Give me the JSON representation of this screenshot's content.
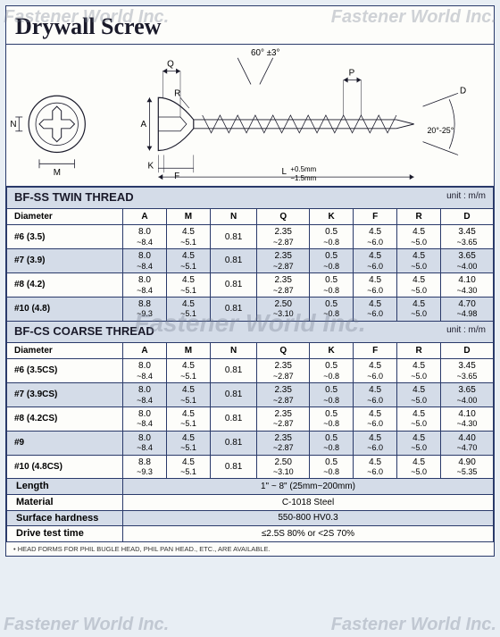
{
  "watermark": "Fastener World Inc.",
  "title": "Drywall Screw",
  "diagram": {
    "angle1": "60° ±3°",
    "angle2": "20°-25°",
    "tol": "+0.5mm\n−1.5mm",
    "labels": {
      "N": "N",
      "M": "M",
      "Q": "Q",
      "R": "R",
      "A": "A",
      "K": "K",
      "F": "F",
      "L": "L",
      "P": "P",
      "D": "D"
    }
  },
  "unit_text": "unit : m/m",
  "sections": [
    {
      "title": "BF-SS TWIN THREAD",
      "cols": [
        "Diameter",
        "A",
        "M",
        "N",
        "Q",
        "K",
        "F",
        "R",
        "D"
      ],
      "rows": [
        {
          "alt": false,
          "d": "#6 (3.5)",
          "A": [
            "8.0",
            "~8.4"
          ],
          "M": [
            "4.5",
            "~5.1"
          ],
          "N": "0.81",
          "Q": [
            "2.35",
            "~2.87"
          ],
          "K": [
            "0.5",
            "~0.8"
          ],
          "F": [
            "4.5",
            "~6.0"
          ],
          "R": [
            "4.5",
            "~5.0"
          ],
          "D": [
            "3.45",
            "~3.65"
          ]
        },
        {
          "alt": true,
          "d": "#7 (3.9)",
          "A": [
            "8.0",
            "~8.4"
          ],
          "M": [
            "4.5",
            "~5.1"
          ],
          "N": "0.81",
          "Q": [
            "2.35",
            "~2.87"
          ],
          "K": [
            "0.5",
            "~0.8"
          ],
          "F": [
            "4.5",
            "~6.0"
          ],
          "R": [
            "4.5",
            "~5.0"
          ],
          "D": [
            "3.65",
            "~4.00"
          ]
        },
        {
          "alt": false,
          "d": "#8 (4.2)",
          "A": [
            "8.0",
            "~8.4"
          ],
          "M": [
            "4.5",
            "~5.1"
          ],
          "N": "0.81",
          "Q": [
            "2.35",
            "~2.87"
          ],
          "K": [
            "0.5",
            "~0.8"
          ],
          "F": [
            "4.5",
            "~6.0"
          ],
          "R": [
            "4.5",
            "~5.0"
          ],
          "D": [
            "4.10",
            "~4.30"
          ]
        },
        {
          "alt": true,
          "d": "#10 (4.8)",
          "A": [
            "8.8",
            "~9.3"
          ],
          "M": [
            "4.5",
            "~5.1"
          ],
          "N": "0.81",
          "Q": [
            "2.50",
            "~3.10"
          ],
          "K": [
            "0.5",
            "~0.8"
          ],
          "F": [
            "4.5",
            "~6.0"
          ],
          "R": [
            "4.5",
            "~5.0"
          ],
          "D": [
            "4.70",
            "~4.98"
          ]
        }
      ]
    },
    {
      "title": "BF-CS COARSE THREAD",
      "cols": [
        "Diameter",
        "A",
        "M",
        "N",
        "Q",
        "K",
        "F",
        "R",
        "D"
      ],
      "rows": [
        {
          "alt": false,
          "d": "#6 (3.5CS)",
          "A": [
            "8.0",
            "~8.4"
          ],
          "M": [
            "4.5",
            "~5.1"
          ],
          "N": "0.81",
          "Q": [
            "2.35",
            "~2.87"
          ],
          "K": [
            "0.5",
            "~0.8"
          ],
          "F": [
            "4.5",
            "~6.0"
          ],
          "R": [
            "4.5",
            "~5.0"
          ],
          "D": [
            "3.45",
            "~3.65"
          ]
        },
        {
          "alt": true,
          "d": "#7 (3.9CS)",
          "A": [
            "8.0",
            "~8.4"
          ],
          "M": [
            "4.5",
            "~5.1"
          ],
          "N": "0.81",
          "Q": [
            "2.35",
            "~2.87"
          ],
          "K": [
            "0.5",
            "~0.8"
          ],
          "F": [
            "4.5",
            "~6.0"
          ],
          "R": [
            "4.5",
            "~5.0"
          ],
          "D": [
            "3.65",
            "~4.00"
          ]
        },
        {
          "alt": false,
          "d": "#8 (4.2CS)",
          "A": [
            "8.0",
            "~8.4"
          ],
          "M": [
            "4.5",
            "~5.1"
          ],
          "N": "0.81",
          "Q": [
            "2.35",
            "~2.87"
          ],
          "K": [
            "0.5",
            "~0.8"
          ],
          "F": [
            "4.5",
            "~6.0"
          ],
          "R": [
            "4.5",
            "~5.0"
          ],
          "D": [
            "4.10",
            "~4.30"
          ]
        },
        {
          "alt": true,
          "d": "#9",
          "A": [
            "8.0",
            "~8.4"
          ],
          "M": [
            "4.5",
            "~5.1"
          ],
          "N": "0.81",
          "Q": [
            "2.35",
            "~2.87"
          ],
          "K": [
            "0.5",
            "~0.8"
          ],
          "F": [
            "4.5",
            "~6.0"
          ],
          "R": [
            "4.5",
            "~5.0"
          ],
          "D": [
            "4.40",
            "~4.70"
          ]
        },
        {
          "alt": false,
          "d": "#10 (4.8CS)",
          "A": [
            "8.8",
            "~9.3"
          ],
          "M": [
            "4.5",
            "~5.1"
          ],
          "N": "0.81",
          "Q": [
            "2.50",
            "~3.10"
          ],
          "K": [
            "0.5",
            "~0.8"
          ],
          "F": [
            "4.5",
            "~6.0"
          ],
          "R": [
            "4.5",
            "~5.0"
          ],
          "D": [
            "4.90",
            "~5.35"
          ]
        }
      ]
    }
  ],
  "info": [
    {
      "alt": true,
      "label": "Length",
      "value": "1\" ~ 8\" (25mm~200mm)"
    },
    {
      "alt": false,
      "label": "Material",
      "value": "C-1018 Steel"
    },
    {
      "alt": true,
      "label": "Surface hardness",
      "value": "550-800 HV0.3"
    },
    {
      "alt": false,
      "label": "Drive test time",
      "value": "≤2.5S 80% or <2S 70%"
    }
  ],
  "footnote": "• HEAD FORMS FOR PHIL BUGLE HEAD, PHIL PAN HEAD., ETC., ARE AVAILABLE."
}
